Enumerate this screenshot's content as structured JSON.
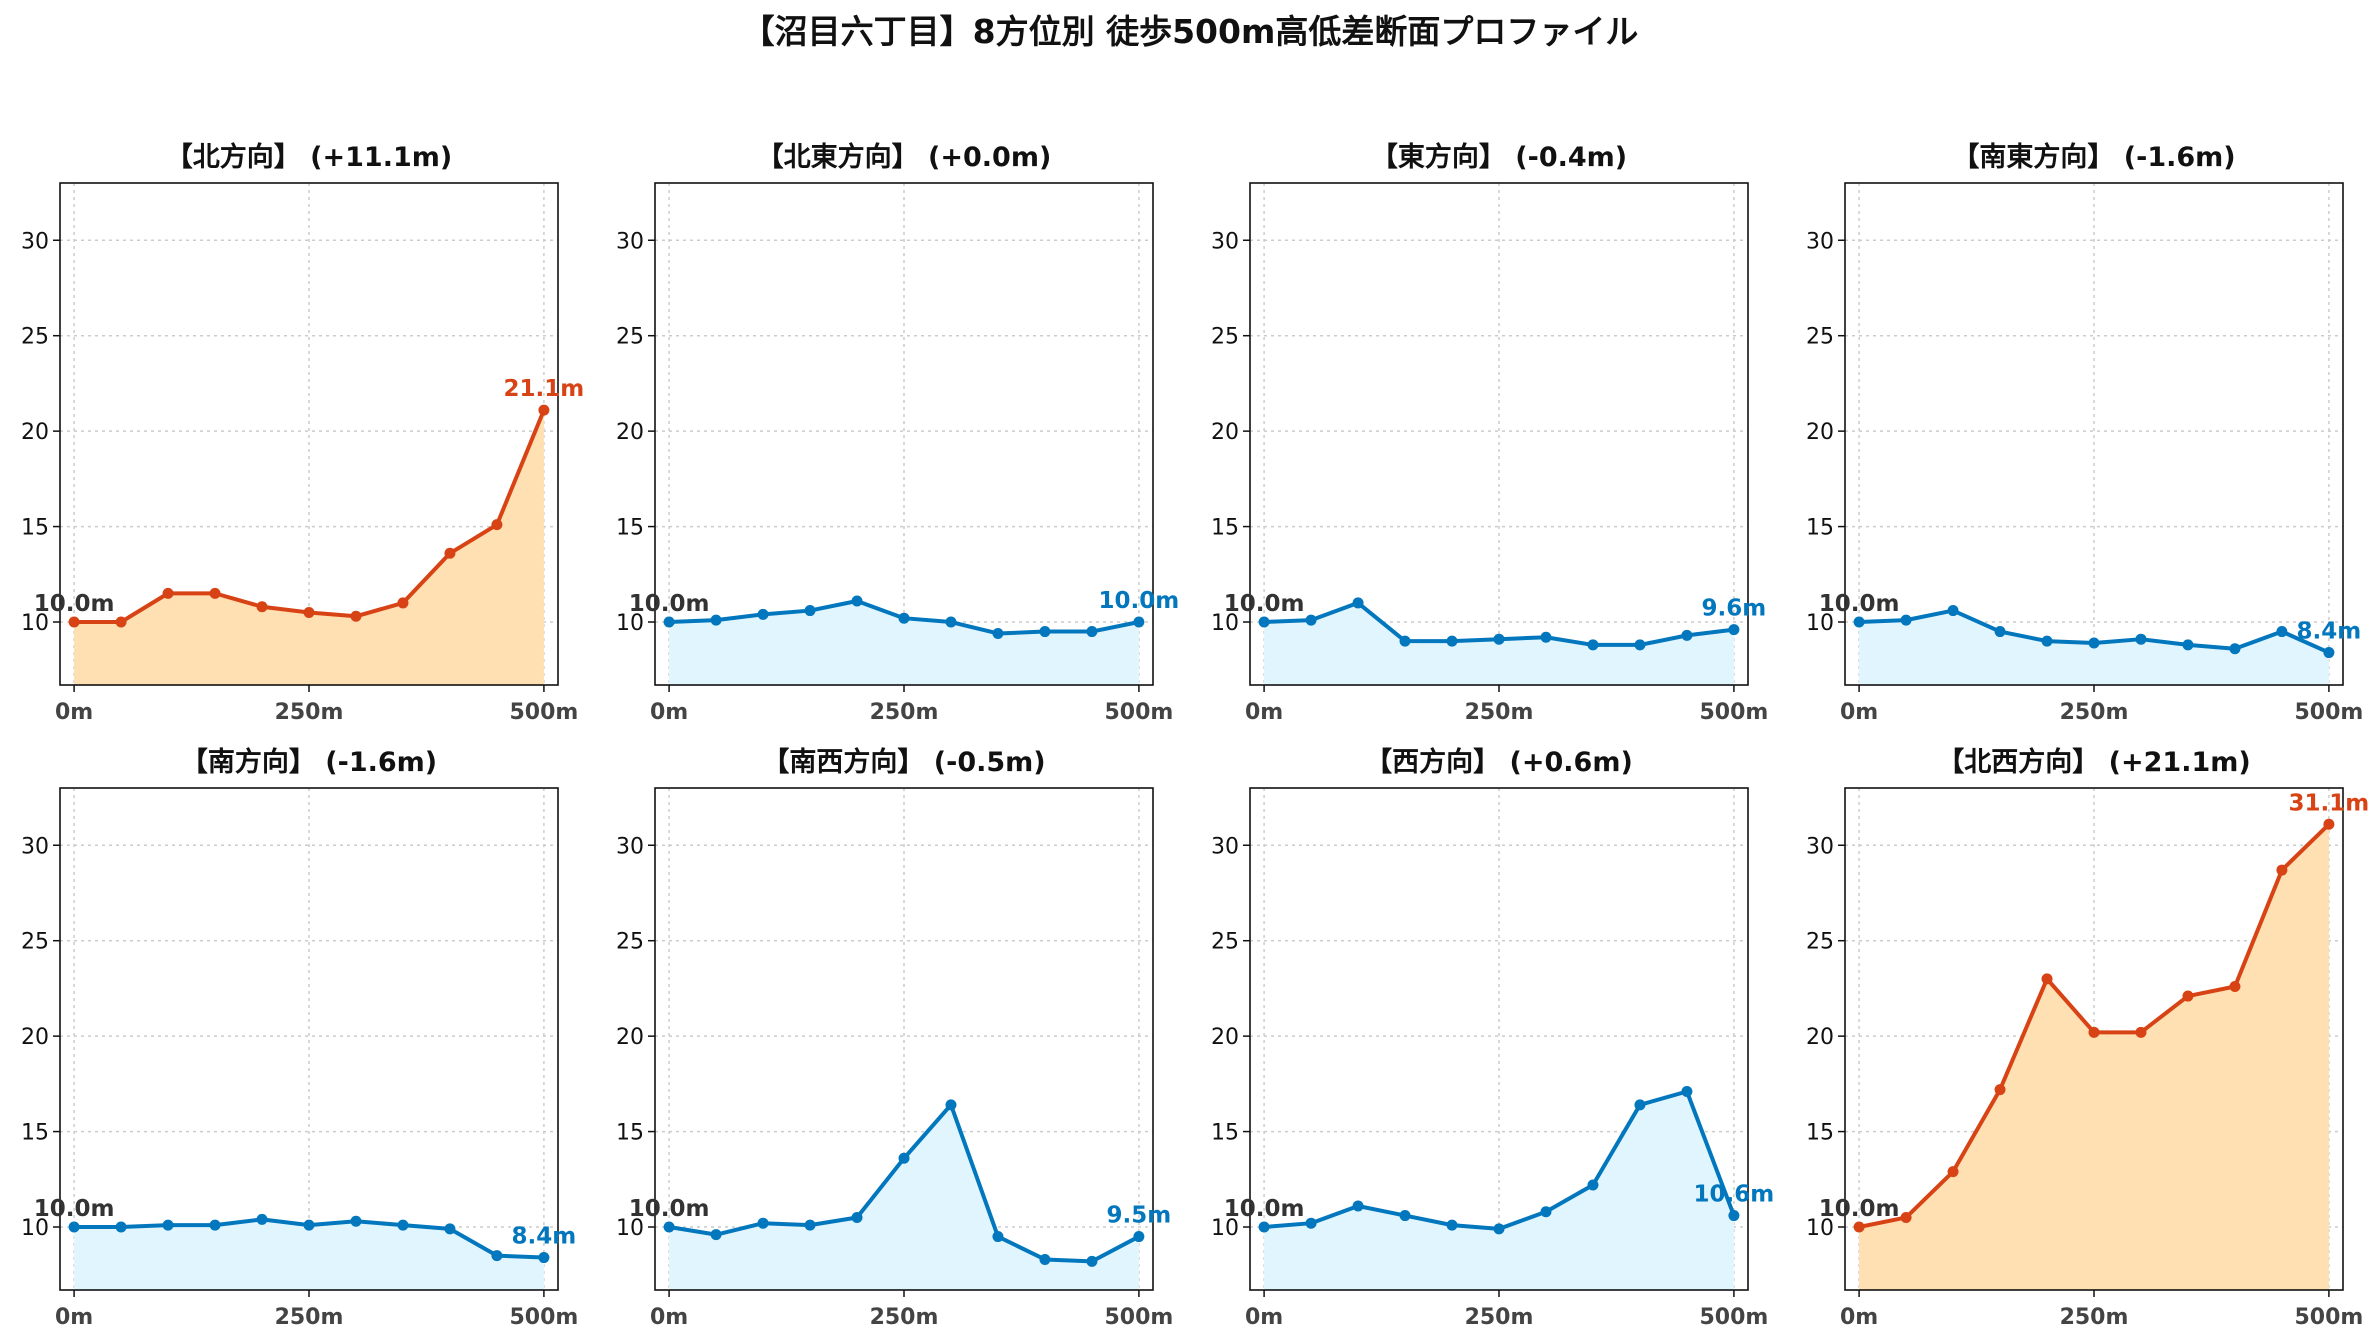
{
  "title": "【沼目六丁目】8方位別 徒歩500m高低差断面プロファイル",
  "colors": {
    "up_line": "#d84315",
    "up_fill": "#ffe0b2",
    "down_line": "#0277bd",
    "down_fill": "#e1f5fe",
    "start_label": "#333333"
  },
  "chart_data": [
    {
      "type": "line",
      "title": "【北方向】 (+11.1m)",
      "trend": "up",
      "x": [
        0,
        50,
        100,
        150,
        200,
        250,
        300,
        350,
        400,
        450,
        500
      ],
      "y": [
        10.0,
        10.0,
        11.5,
        11.5,
        10.8,
        10.5,
        10.3,
        11.0,
        13.6,
        15.1,
        21.1
      ],
      "start_label": "10.0m",
      "end_label": "21.1m",
      "xticks": [
        0,
        250,
        500
      ],
      "xtick_labels": [
        "0m",
        "250m",
        "500m"
      ],
      "yticks": [
        10,
        15,
        20,
        25,
        30
      ],
      "ytick_labels": [
        "10",
        "15",
        "20",
        "25",
        "30"
      ],
      "xlim": [
        -15,
        515
      ],
      "ylim": [
        6.7,
        33.0
      ],
      "grid": true
    },
    {
      "type": "line",
      "title": "【北東方向】 (+0.0m)",
      "trend": "down",
      "x": [
        0,
        50,
        100,
        150,
        200,
        250,
        300,
        350,
        400,
        450,
        500
      ],
      "y": [
        10.0,
        10.1,
        10.4,
        10.6,
        11.1,
        10.2,
        10.0,
        9.4,
        9.5,
        9.5,
        10.0
      ],
      "start_label": "10.0m",
      "end_label": "10.0m",
      "xticks": [
        0,
        250,
        500
      ],
      "xtick_labels": [
        "0m",
        "250m",
        "500m"
      ],
      "yticks": [
        10,
        15,
        20,
        25,
        30
      ],
      "ytick_labels": [
        "10",
        "15",
        "20",
        "25",
        "30"
      ],
      "xlim": [
        -15,
        515
      ],
      "ylim": [
        6.7,
        33.0
      ],
      "grid": true
    },
    {
      "type": "line",
      "title": "【東方向】 (-0.4m)",
      "trend": "down",
      "x": [
        0,
        50,
        100,
        150,
        200,
        250,
        300,
        350,
        400,
        450,
        500
      ],
      "y": [
        10.0,
        10.1,
        11.0,
        9.0,
        9.0,
        9.1,
        9.2,
        8.8,
        8.8,
        9.3,
        9.6
      ],
      "start_label": "10.0m",
      "end_label": "9.6m",
      "xticks": [
        0,
        250,
        500
      ],
      "xtick_labels": [
        "0m",
        "250m",
        "500m"
      ],
      "yticks": [
        10,
        15,
        20,
        25,
        30
      ],
      "ytick_labels": [
        "10",
        "15",
        "20",
        "25",
        "30"
      ],
      "xlim": [
        -15,
        515
      ],
      "ylim": [
        6.7,
        33.0
      ],
      "grid": true
    },
    {
      "type": "line",
      "title": "【南東方向】 (-1.6m)",
      "trend": "down",
      "x": [
        0,
        50,
        100,
        150,
        200,
        250,
        300,
        350,
        400,
        450,
        500
      ],
      "y": [
        10.0,
        10.1,
        10.6,
        9.5,
        9.0,
        8.9,
        9.1,
        8.8,
        8.6,
        9.5,
        8.4
      ],
      "start_label": "10.0m",
      "end_label": "8.4m",
      "xticks": [
        0,
        250,
        500
      ],
      "xtick_labels": [
        "0m",
        "250m",
        "500m"
      ],
      "yticks": [
        10,
        15,
        20,
        25,
        30
      ],
      "ytick_labels": [
        "10",
        "15",
        "20",
        "25",
        "30"
      ],
      "xlim": [
        -15,
        515
      ],
      "ylim": [
        6.7,
        33.0
      ],
      "grid": true
    },
    {
      "type": "line",
      "title": "【南方向】 (-1.6m)",
      "trend": "down",
      "x": [
        0,
        50,
        100,
        150,
        200,
        250,
        300,
        350,
        400,
        450,
        500
      ],
      "y": [
        10.0,
        10.0,
        10.1,
        10.1,
        10.4,
        10.1,
        10.3,
        10.1,
        9.9,
        8.5,
        8.4
      ],
      "start_label": "10.0m",
      "end_label": "8.4m",
      "xticks": [
        0,
        250,
        500
      ],
      "xtick_labels": [
        "0m",
        "250m",
        "500m"
      ],
      "yticks": [
        10,
        15,
        20,
        25,
        30
      ],
      "ytick_labels": [
        "10",
        "15",
        "20",
        "25",
        "30"
      ],
      "xlim": [
        -15,
        515
      ],
      "ylim": [
        6.7,
        33.0
      ],
      "grid": true
    },
    {
      "type": "line",
      "title": "【南西方向】 (-0.5m)",
      "trend": "down",
      "x": [
        0,
        50,
        100,
        150,
        200,
        250,
        300,
        350,
        400,
        450,
        500
      ],
      "y": [
        10.0,
        9.6,
        10.2,
        10.1,
        10.5,
        13.6,
        16.4,
        9.5,
        8.3,
        8.2,
        9.5
      ],
      "start_label": "10.0m",
      "end_label": "9.5m",
      "xticks": [
        0,
        250,
        500
      ],
      "xtick_labels": [
        "0m",
        "250m",
        "500m"
      ],
      "yticks": [
        10,
        15,
        20,
        25,
        30
      ],
      "ytick_labels": [
        "10",
        "15",
        "20",
        "25",
        "30"
      ],
      "xlim": [
        -15,
        515
      ],
      "ylim": [
        6.7,
        33.0
      ],
      "grid": true
    },
    {
      "type": "line",
      "title": "【西方向】 (+0.6m)",
      "trend": "down",
      "x": [
        0,
        50,
        100,
        150,
        200,
        250,
        300,
        350,
        400,
        450,
        500
      ],
      "y": [
        10.0,
        10.2,
        11.1,
        10.6,
        10.1,
        9.9,
        10.8,
        12.2,
        16.4,
        17.1,
        10.6
      ],
      "start_label": "10.0m",
      "end_label": "10.6m",
      "xticks": [
        0,
        250,
        500
      ],
      "xtick_labels": [
        "0m",
        "250m",
        "500m"
      ],
      "yticks": [
        10,
        15,
        20,
        25,
        30
      ],
      "ytick_labels": [
        "10",
        "15",
        "20",
        "25",
        "30"
      ],
      "xlim": [
        -15,
        515
      ],
      "ylim": [
        6.7,
        33.0
      ],
      "grid": true
    },
    {
      "type": "line",
      "title": "【北西方向】 (+21.1m)",
      "trend": "up",
      "x": [
        0,
        50,
        100,
        150,
        200,
        250,
        300,
        350,
        400,
        450,
        500
      ],
      "y": [
        10.0,
        10.5,
        12.9,
        17.2,
        23.0,
        20.2,
        20.2,
        22.1,
        22.6,
        28.7,
        31.1
      ],
      "start_label": "10.0m",
      "end_label": "31.1m",
      "xticks": [
        0,
        250,
        500
      ],
      "xtick_labels": [
        "0m",
        "250m",
        "500m"
      ],
      "yticks": [
        10,
        15,
        20,
        25,
        30
      ],
      "ytick_labels": [
        "10",
        "15",
        "20",
        "25",
        "30"
      ],
      "xlim": [
        -15,
        515
      ],
      "ylim": [
        6.7,
        33.0
      ],
      "grid": true
    }
  ]
}
